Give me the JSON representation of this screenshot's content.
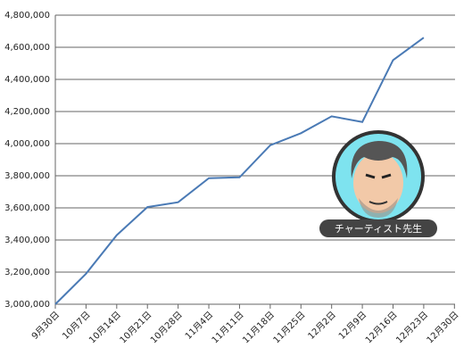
{
  "chart_data": {
    "type": "line",
    "categories": [
      "9月30日",
      "10月7日",
      "10月14日",
      "10月21日",
      "10月28日",
      "11月4日",
      "11月11日",
      "11月18日",
      "11月25日",
      "12月2日",
      "12月9日",
      "12月16日",
      "12月23日",
      "12月30日"
    ],
    "series": [
      {
        "color": "#4a7ab5",
        "values": [
          3000000,
          3190000,
          3430000,
          3605000,
          3635000,
          3785000,
          3790000,
          3990000,
          4065000,
          4170000,
          4135000,
          4520000,
          4660000,
          null
        ]
      }
    ],
    "ylim": [
      3000000,
      4800000
    ],
    "yticks": [
      {
        "value": 3000000,
        "label": "3,000,000"
      },
      {
        "value": 3200000,
        "label": "3,200,000"
      },
      {
        "value": 3400000,
        "label": "3,400,000"
      },
      {
        "value": 3600000,
        "label": "3,600,000"
      },
      {
        "value": 3800000,
        "label": "3,800,000"
      },
      {
        "value": 4000000,
        "label": "4,000,000"
      },
      {
        "value": 4200000,
        "label": "4,200,000"
      },
      {
        "value": 4400000,
        "label": "4,400,000"
      },
      {
        "value": 4600000,
        "label": "4,600,000"
      },
      {
        "value": 4800000,
        "label": "4,800,000"
      }
    ],
    "grid": true,
    "annotation": "チャーティスト先生"
  }
}
